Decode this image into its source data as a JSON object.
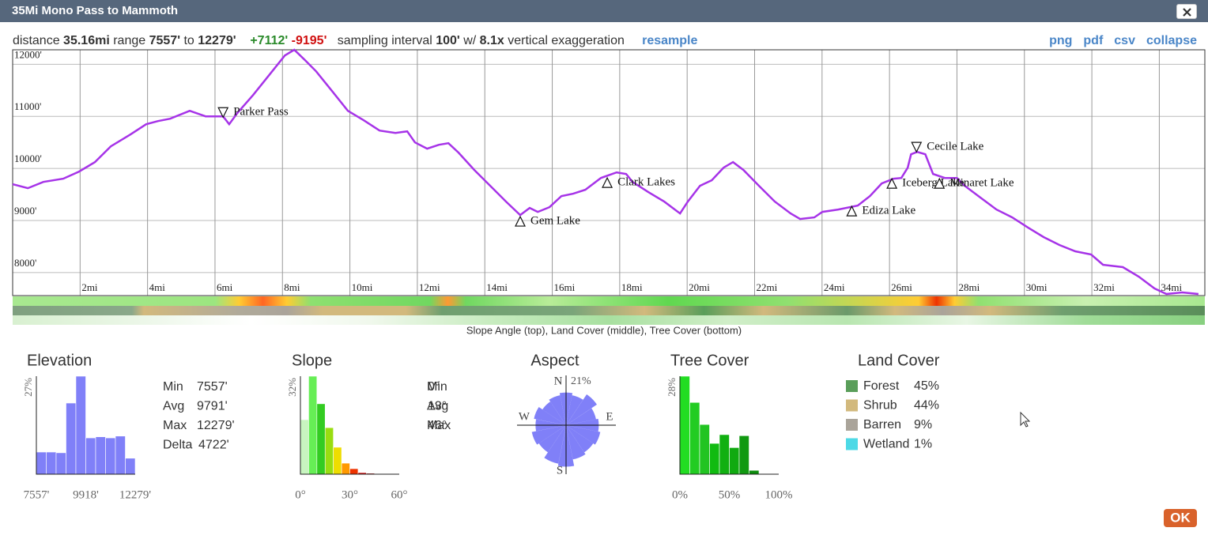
{
  "header": {
    "title": "35Mi Mono Pass to Mammoth"
  },
  "summary": {
    "distance_label": "distance",
    "distance": "35.16mi",
    "range_label": "range",
    "range_min": "7557'",
    "range_to": "to",
    "range_max": "12279'",
    "gain": "+7112'",
    "loss": "-9195'",
    "interval_label": "sampling interval",
    "interval": "100'",
    "with_label": "w/",
    "exaggeration": "8.1x",
    "exaggeration_label": "vertical exaggeration",
    "resample": "resample"
  },
  "links": [
    "png",
    "pdf",
    "csv",
    "collapse"
  ],
  "profile": {
    "type": "line",
    "color": "#a633e8",
    "grid": true,
    "x": [
      0,
      0.45,
      0.91,
      1.5,
      1.97,
      2.44,
      2.91,
      3.49,
      3.96,
      4.31,
      4.67,
      5.25,
      5.72,
      6.07,
      6.24,
      6.42,
      6.66,
      7.13,
      7.6,
      8.07,
      8.35,
      8.65,
      9.0,
      9.47,
      9.94,
      10.41,
      10.88,
      11.35,
      11.7,
      11.93,
      12.29,
      12.64,
      12.92,
      13.22,
      13.69,
      14.16,
      14.63,
      15.05,
      15.33,
      15.57,
      15.92,
      16.27,
      16.62,
      16.98,
      17.44,
      17.91,
      18.19,
      18.38,
      18.85,
      19.32,
      19.79,
      20.02,
      20.38,
      20.73,
      21.08,
      21.36,
      21.67,
      22.13,
      22.6,
      23.07,
      23.35,
      23.77,
      24.01,
      24.48,
      25.06,
      25.42,
      25.77,
      26.12,
      26.35,
      26.54,
      26.64,
      26.82,
      27.06,
      27.29,
      27.64,
      28.0,
      28.23,
      28.7,
      29.17,
      29.64,
      30.11,
      30.57,
      31.04,
      31.51,
      31.98,
      32.33,
      32.92,
      33.39,
      33.86,
      34.21,
      34.68,
      35.16
    ],
    "values": [
      9696,
      9620,
      9741,
      9802,
      9939,
      10121,
      10424,
      10652,
      10849,
      10910,
      10955,
      11107,
      11001,
      11001,
      11001,
      10849,
      11061,
      11410,
      11789,
      12169,
      12279,
      12093,
      11865,
      11486,
      11107,
      10925,
      10728,
      10682,
      10712,
      10500,
      10379,
      10454,
      10485,
      10303,
      9969,
      9666,
      9362,
      9104,
      9241,
      9165,
      9256,
      9468,
      9514,
      9590,
      9817,
      9924,
      9893,
      9741,
      9544,
      9362,
      9135,
      9362,
      9666,
      9772,
      10015,
      10121,
      9969,
      9666,
      9362,
      9135,
      9028,
      9059,
      9165,
      9211,
      9286,
      9468,
      9711,
      9802,
      9817,
      10015,
      10272,
      10318,
      10272,
      9893,
      9817,
      9817,
      9666,
      9438,
      9211,
      9059,
      8862,
      8680,
      8528,
      8407,
      8346,
      8149,
      8103,
      7921,
      7694,
      7587,
      7618,
      7587
    ],
    "xlim": [
      0,
      35.35
    ],
    "ylim": [
      7557,
      12279
    ],
    "xticks": [
      {
        "value": 2,
        "label": "2mi"
      },
      {
        "value": 4,
        "label": "4mi"
      },
      {
        "value": 6,
        "label": "6mi"
      },
      {
        "value": 8,
        "label": "8mi"
      },
      {
        "value": 10,
        "label": "10mi"
      },
      {
        "value": 12,
        "label": "12mi"
      },
      {
        "value": 14,
        "label": "14mi"
      },
      {
        "value": 16,
        "label": "16mi"
      },
      {
        "value": 18,
        "label": "18mi"
      },
      {
        "value": 20,
        "label": "20mi"
      },
      {
        "value": 22,
        "label": "22mi"
      },
      {
        "value": 24,
        "label": "24mi"
      },
      {
        "value": 26,
        "label": "26mi"
      },
      {
        "value": 28,
        "label": "28mi"
      },
      {
        "value": 30,
        "label": "30mi"
      },
      {
        "value": 32,
        "label": "32mi"
      },
      {
        "value": 34,
        "label": "34mi"
      }
    ],
    "yticks": [
      {
        "value": 8000,
        "label": "8000'"
      },
      {
        "value": 9000,
        "label": "9000'"
      },
      {
        "value": 10000,
        "label": "10000'"
      },
      {
        "value": 11000,
        "label": "11000'"
      },
      {
        "value": 12000,
        "label": "12000'"
      }
    ],
    "waypoints": [
      {
        "name": "Parker Pass",
        "x": 6.24,
        "elevation": 11076,
        "marker": "down"
      },
      {
        "name": "Gem Lake",
        "x": 15.05,
        "elevation": 8983,
        "marker": "up"
      },
      {
        "name": "Clark Lakes",
        "x": 17.63,
        "elevation": 9726,
        "marker": "up"
      },
      {
        "name": "Ediza Lake",
        "x": 24.88,
        "elevation": 9180,
        "marker": "up"
      },
      {
        "name": "Iceberg Lake",
        "x": 26.07,
        "elevation": 9711,
        "marker": "up"
      },
      {
        "name": "Cecile Lake",
        "x": 26.8,
        "elevation": 10409,
        "marker": "down"
      },
      {
        "name": "Minaret Lake",
        "x": 27.48,
        "elevation": 9711,
        "marker": "up"
      }
    ]
  },
  "strip_caption": "Slope Angle (top), Land Cover (middle), Tree Cover (bottom)",
  "elevation": {
    "title": "Elevation",
    "type": "histogram",
    "color": "#8080f8",
    "bins": [
      7557,
      8029,
      8501,
      8974,
      9446,
      9918,
      10390,
      10862,
      11335,
      11807,
      12279
    ],
    "values": [
      6.1,
      6.1,
      5.9,
      19.6,
      27,
      10,
      10.3,
      10,
      10.5,
      4.4
    ],
    "xlim": [
      7557,
      12279
    ],
    "ylim": [
      0,
      27
    ],
    "xticks": [
      {
        "value": 7557,
        "label": "7557'"
      },
      {
        "value": 9918,
        "label": "9918'"
      },
      {
        "value": 12279,
        "label": "12279'"
      }
    ],
    "yticks": [
      {
        "value": 27,
        "label": "27%"
      }
    ],
    "stats": [
      {
        "label": "Min",
        "value": "7557'"
      },
      {
        "label": "Avg",
        "value": "9791'"
      },
      {
        "label": "Max",
        "value": "12279'"
      },
      {
        "label": "Delta",
        "value": "4722'"
      }
    ]
  },
  "slope": {
    "title": "Slope",
    "type": "histogram",
    "colors": [
      "#c8f5c0",
      "#66ee55",
      "#33cc22",
      "#99dd11",
      "#eedd00",
      "#ff9900",
      "#ee3300",
      "#cc0000",
      "#990000",
      "#660000",
      "#660000",
      "#660000"
    ],
    "bins": [
      0,
      5,
      10,
      15,
      20,
      25,
      30,
      35,
      40,
      45,
      50,
      55,
      60
    ],
    "values": [
      17.8,
      32,
      23,
      15.2,
      8.8,
      3.6,
      1.8,
      0.5,
      0.3,
      0,
      0,
      0
    ],
    "xlim": [
      0,
      60
    ],
    "ylim": [
      0,
      32
    ],
    "xticks": [
      {
        "value": 0,
        "label": "0°"
      },
      {
        "value": 30,
        "label": "30°"
      },
      {
        "value": 60,
        "label": "60°"
      }
    ],
    "yticks": [
      {
        "value": 32,
        "label": "32%"
      }
    ],
    "stats": [
      {
        "label": "Min",
        "value": "0°"
      },
      {
        "label": "Avg",
        "value": "13°"
      },
      {
        "label": "Max",
        "value": "46°"
      }
    ]
  },
  "aspect": {
    "title": "Aspect",
    "type": "rose",
    "color": "#8080f8",
    "values": [
      15,
      14,
      17,
      14,
      15,
      16,
      15,
      16,
      19,
      18,
      15,
      16,
      14,
      15,
      13,
      14
    ],
    "rlim": [
      0,
      21
    ],
    "rticks": [
      {
        "value": 21,
        "label": "21%"
      }
    ],
    "directions": [
      "N",
      "E",
      "S",
      "W"
    ]
  },
  "tree_cover": {
    "title": "Tree Cover",
    "type": "histogram",
    "colors": [
      "#22dd22",
      "#22cc22",
      "#22c422",
      "#11bb11",
      "#11b011",
      "#11aa11",
      "#119911",
      "#0c8c0c",
      "#088008",
      "#047004"
    ],
    "bins": [
      0,
      10,
      20,
      30,
      40,
      50,
      60,
      70,
      80,
      90,
      100
    ],
    "values": [
      28,
      20.5,
      14.2,
      8.8,
      11.3,
      7.6,
      11,
      1.1,
      0,
      0
    ],
    "xlim": [
      0,
      100
    ],
    "ylim": [
      0,
      28
    ],
    "xticks": [
      {
        "value": 0,
        "label": "0%"
      },
      {
        "value": 50,
        "label": "50%"
      },
      {
        "value": 100,
        "label": "100%"
      }
    ],
    "yticks": [
      {
        "value": 28,
        "label": "28%"
      }
    ]
  },
  "land_cover": {
    "title": "Land Cover",
    "type": "legend",
    "categories": [
      "Forest",
      "Shrub",
      "Barren",
      "Wetland"
    ],
    "values": [
      45,
      44,
      9,
      1
    ],
    "value_labels": [
      "45%",
      "44%",
      "9%",
      "1%"
    ],
    "colors": [
      "#5a9e5a",
      "#d2b97d",
      "#aaa49a",
      "#4dd9e6"
    ]
  },
  "ok": "OK"
}
